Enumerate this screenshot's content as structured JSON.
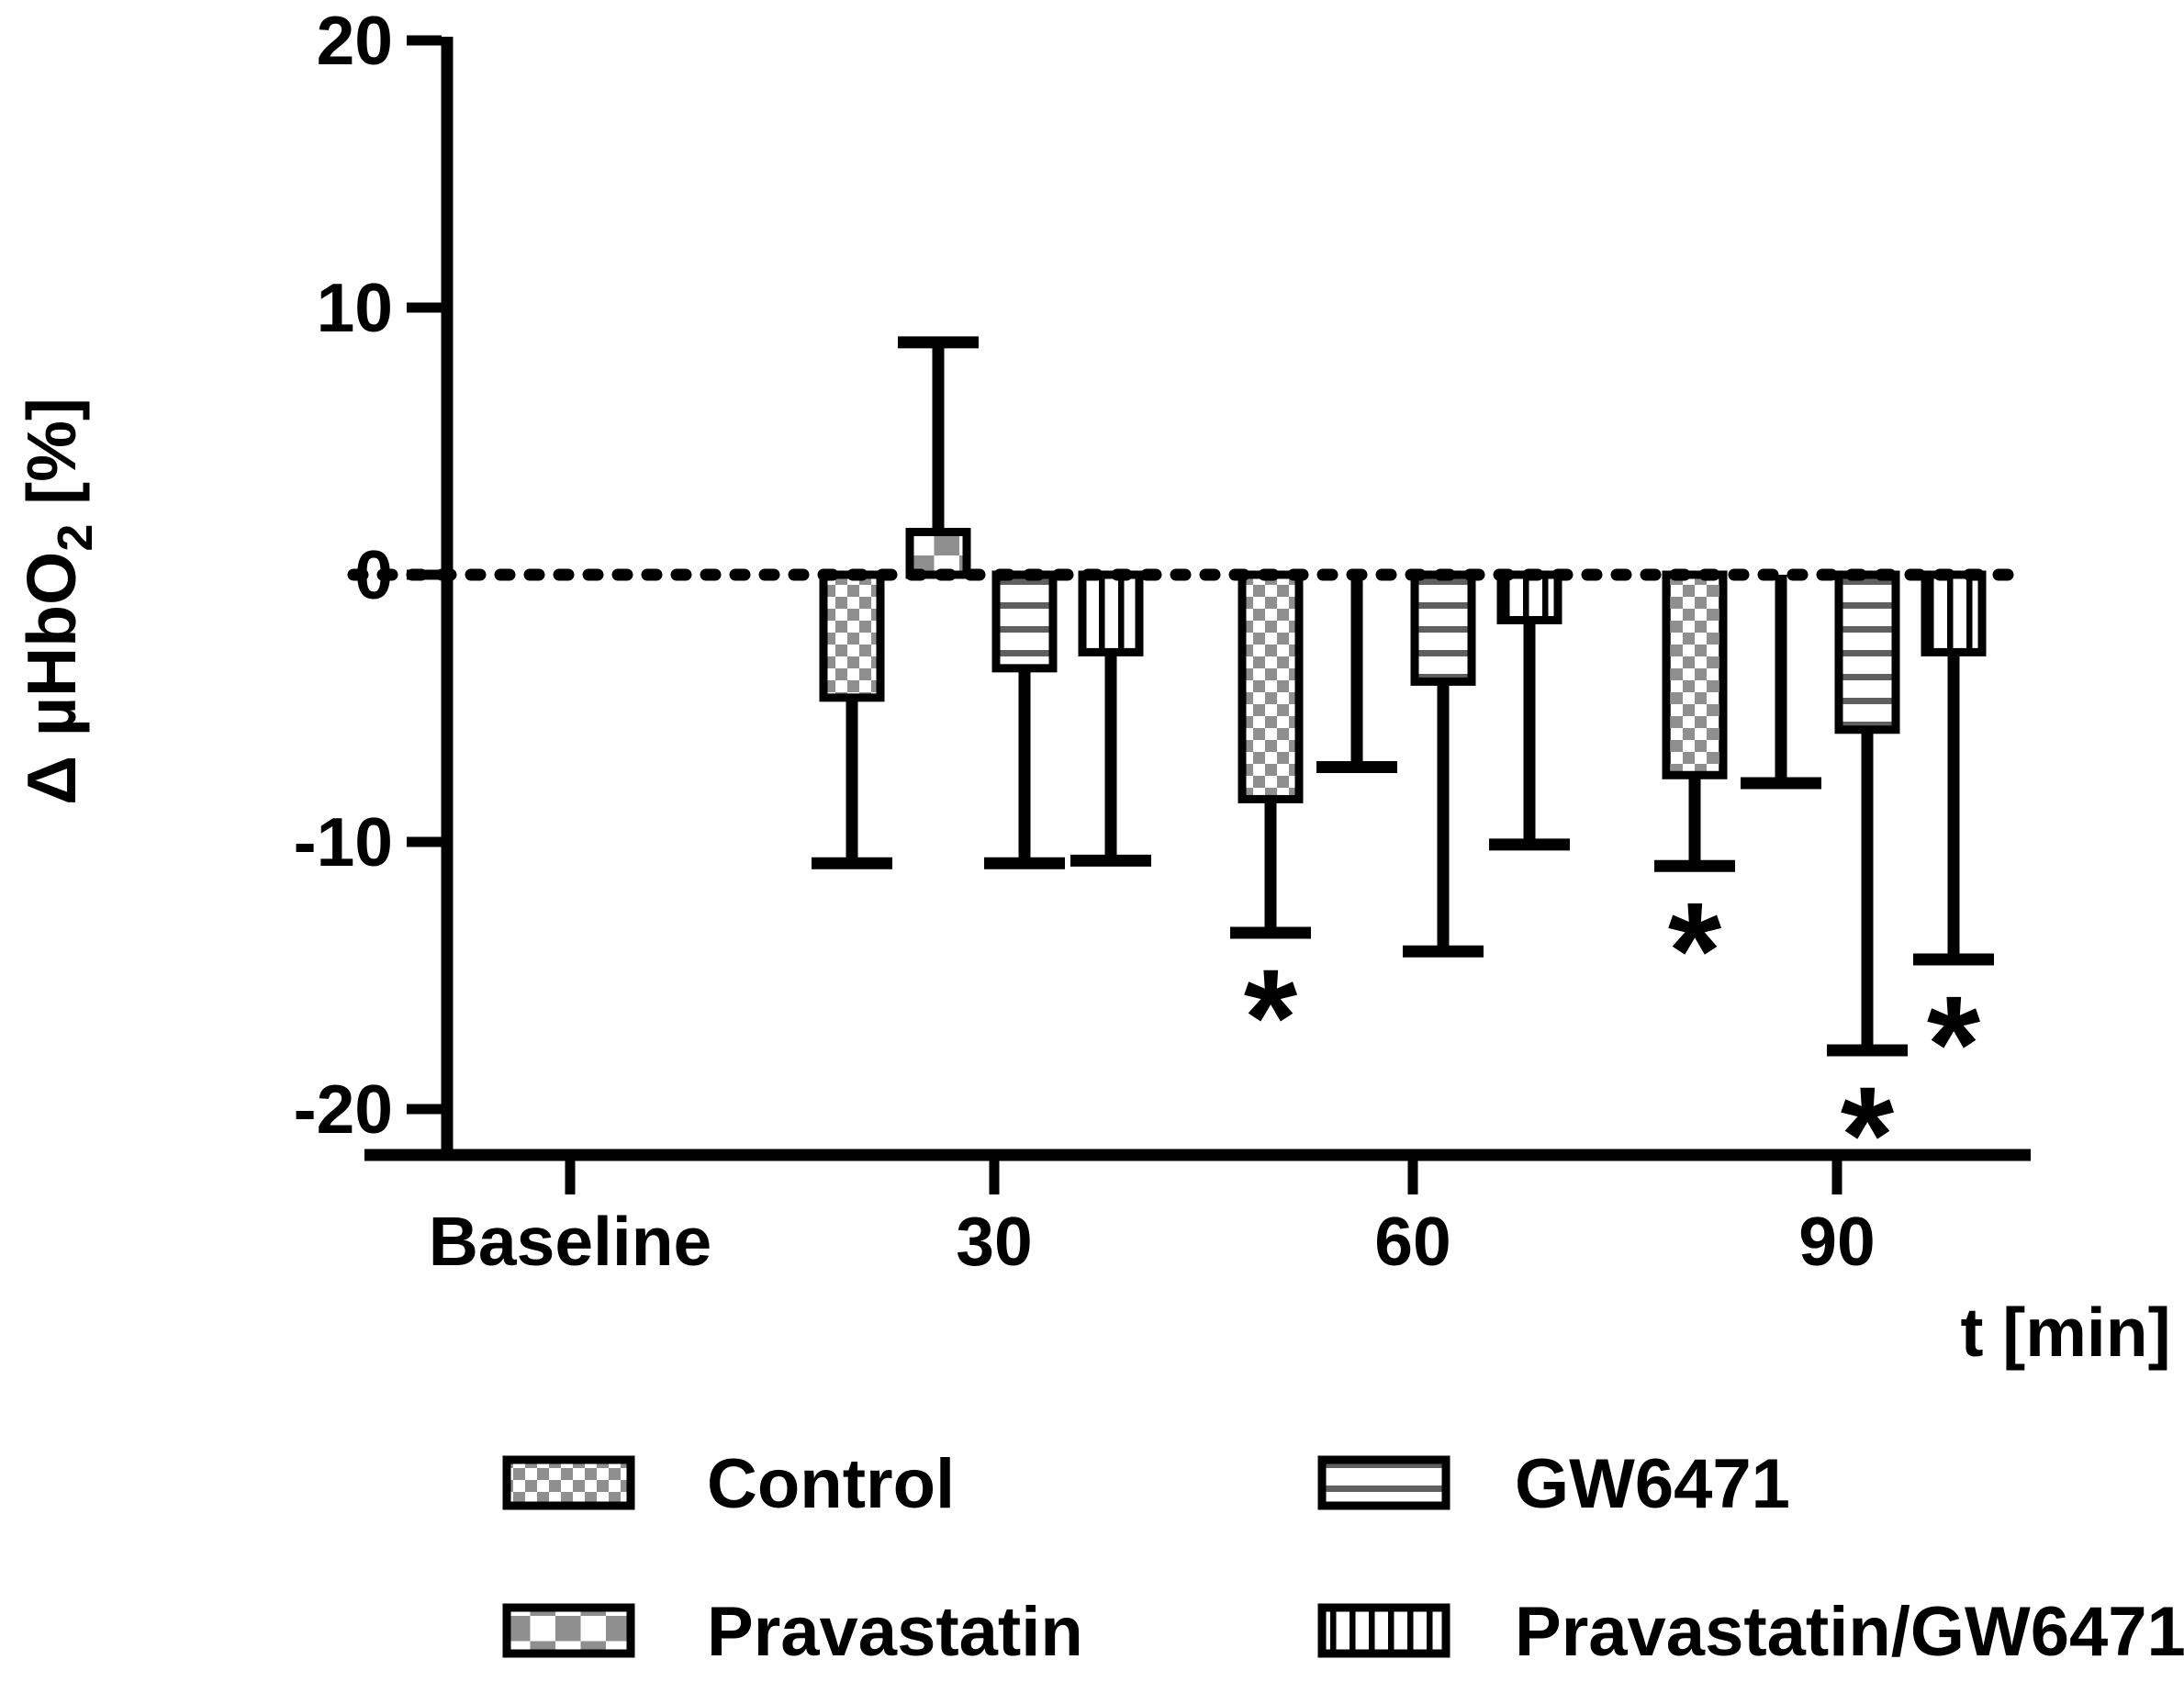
{
  "figure": {
    "background": "#ffffff"
  },
  "colors": {
    "axis": "#000000",
    "checker_gray": "#8f8f8f",
    "hline_gray": "#5f5f5f",
    "vline_black": "#000000",
    "bar_background": "#ffffff"
  },
  "chart_data": {
    "type": "bar",
    "title": "",
    "categories": [
      "Baseline",
      "30",
      "60",
      "90"
    ],
    "xlabel": "t [min]",
    "ylabel": "Δ µHbO₂ [%]",
    "ylabel_parts": {
      "main": "Δ µHbO",
      "sub": "2",
      "tail": " [%]"
    },
    "yticks": [
      20,
      10,
      0,
      -10,
      -20
    ],
    "ylim": [
      -20,
      20
    ],
    "grid": false,
    "zero_line": "dashed",
    "legend_position": "bottom",
    "significance_marker": "*",
    "series": [
      {
        "name": "Control",
        "pattern": "fine-checker",
        "values": [
          0,
          -4.6,
          -8.4,
          -7.5
        ],
        "error_to": [
          null,
          -10.8,
          -13.4,
          -10.9
        ],
        "significant": [
          false,
          false,
          true,
          true
        ]
      },
      {
        "name": "Pravastatin",
        "pattern": "coarse-checker",
        "values": [
          0,
          1.6,
          0,
          0
        ],
        "error_to": [
          null,
          8.7,
          -7.2,
          -7.8
        ],
        "significant": [
          false,
          false,
          false,
          false
        ]
      },
      {
        "name": "GW6471",
        "pattern": "horizontal-lines",
        "values": [
          0,
          -3.5,
          -4.0,
          -5.8
        ],
        "error_to": [
          null,
          -10.8,
          -14.1,
          -17.8
        ],
        "significant": [
          false,
          false,
          false,
          true
        ]
      },
      {
        "name": "Pravastatin/GW6471",
        "pattern": "vertical-lines",
        "values": [
          0,
          -2.9,
          -1.7,
          -2.9
        ],
        "error_to": [
          null,
          -10.7,
          -10.1,
          -14.4
        ],
        "significant": [
          false,
          false,
          false,
          true
        ]
      }
    ]
  }
}
